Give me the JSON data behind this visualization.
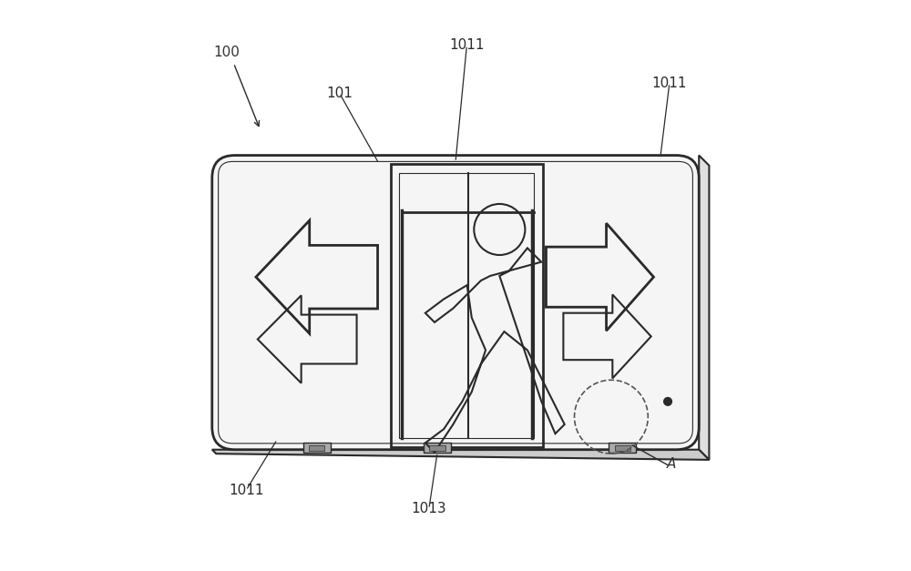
{
  "bg_color": "#ffffff",
  "line_color": "#2a2a2a",
  "label_color": "#333333",
  "fig_width": 10.0,
  "fig_height": 6.27
}
